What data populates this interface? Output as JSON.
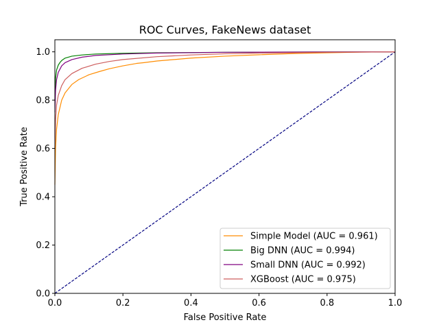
{
  "chart_data": {
    "type": "line",
    "title": "ROC Curves, FakeNews dataset",
    "xlabel": "False Positive Rate",
    "ylabel": "True Positive Rate",
    "xlim": [
      0.0,
      1.0
    ],
    "ylim": [
      0.0,
      1.05
    ],
    "xticks": [
      0.0,
      0.2,
      0.4,
      0.6,
      0.8,
      1.0
    ],
    "yticks": [
      0.0,
      0.2,
      0.4,
      0.6,
      0.8,
      1.0
    ],
    "xtick_labels": [
      "0.0",
      "0.2",
      "0.4",
      "0.6",
      "0.8",
      "1.0"
    ],
    "ytick_labels": [
      "0.0",
      "0.2",
      "0.4",
      "0.6",
      "0.8",
      "1.0"
    ],
    "grid": false,
    "legend_position": "bottom-right",
    "diagonal": {
      "x": [
        0.0,
        1.0
      ],
      "y": [
        0.0,
        1.0
      ],
      "color": "#000080",
      "style": "dashed"
    },
    "series": [
      {
        "name": "Simple Model (AUC = 0.961)",
        "color": "#ff8c00",
        "x": [
          0.0,
          0.002,
          0.005,
          0.01,
          0.02,
          0.03,
          0.05,
          0.07,
          0.1,
          0.13,
          0.16,
          0.2,
          0.24,
          0.26,
          0.3,
          0.35,
          0.4,
          0.5,
          0.6,
          0.7,
          0.8,
          0.9,
          1.0
        ],
        "y": [
          0.45,
          0.6,
          0.68,
          0.74,
          0.8,
          0.83,
          0.865,
          0.885,
          0.905,
          0.918,
          0.93,
          0.942,
          0.952,
          0.955,
          0.962,
          0.968,
          0.974,
          0.982,
          0.988,
          0.993,
          0.996,
          0.999,
          1.0
        ]
      },
      {
        "name": "Big DNN (AUC = 0.994)",
        "color": "#008000",
        "x": [
          0.0,
          0.002,
          0.005,
          0.01,
          0.015,
          0.02,
          0.03,
          0.05,
          0.08,
          0.12,
          0.2,
          0.3,
          0.5,
          0.7,
          1.0
        ],
        "y": [
          0.8,
          0.89,
          0.925,
          0.945,
          0.956,
          0.964,
          0.974,
          0.982,
          0.987,
          0.991,
          0.994,
          0.996,
          0.998,
          0.999,
          1.0
        ]
      },
      {
        "name": "Small DNN (AUC = 0.992)",
        "color": "#800080",
        "x": [
          0.0,
          0.002,
          0.005,
          0.01,
          0.02,
          0.03,
          0.05,
          0.08,
          0.12,
          0.2,
          0.3,
          0.5,
          0.7,
          1.0
        ],
        "y": [
          0.75,
          0.84,
          0.885,
          0.915,
          0.942,
          0.955,
          0.968,
          0.978,
          0.985,
          0.991,
          0.995,
          0.998,
          0.999,
          1.0
        ]
      },
      {
        "name": "XGBoost (AUC = 0.975)",
        "color": "#cd5c5c",
        "x": [
          0.0,
          0.002,
          0.005,
          0.01,
          0.02,
          0.03,
          0.05,
          0.08,
          0.12,
          0.16,
          0.2,
          0.3,
          0.4,
          0.5,
          0.6,
          0.8,
          1.0
        ],
        "y": [
          0.6,
          0.72,
          0.78,
          0.82,
          0.86,
          0.885,
          0.91,
          0.932,
          0.949,
          0.96,
          0.968,
          0.98,
          0.987,
          0.992,
          0.995,
          0.998,
          1.0
        ]
      }
    ]
  }
}
